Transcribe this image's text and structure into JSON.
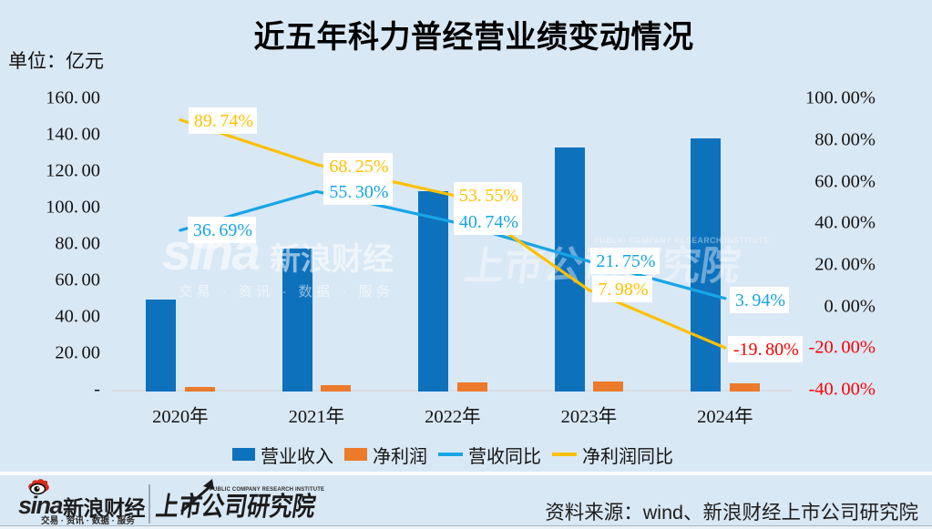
{
  "title": "近五年科力普经营业绩变动情况",
  "unit_label": "单位：亿元",
  "colors": {
    "background": "#d9e8f5",
    "revenue_bar": "#0e71bc",
    "profit_bar": "#eb7a2b",
    "revenue_yoy_line": "#16a5e6",
    "profit_yoy_line": "#ffc000",
    "negative_text": "#fe0000"
  },
  "chart_data": {
    "type": "bar",
    "title": "近五年科力普经营业绩变动情况",
    "unit": "亿元",
    "categories": [
      "2020年",
      "2021年",
      "2022年",
      "2023年",
      "2024年"
    ],
    "series": [
      {
        "name": "营业收入",
        "type": "bar",
        "axis": "left",
        "color": "#0e71bc",
        "values": [
          50.05,
          77.73,
          109.4,
          133.19,
          138.44
        ]
      },
      {
        "name": "净利润",
        "type": "bar",
        "axis": "left",
        "color": "#eb7a2b",
        "values": [
          1.7,
          2.86,
          4.39,
          4.74,
          3.8
        ]
      },
      {
        "name": "营收同比",
        "type": "line",
        "axis": "right",
        "color": "#16a5e6",
        "values": [
          36.69,
          55.3,
          40.74,
          21.75,
          3.94
        ],
        "labels": [
          "36.69%",
          "55.30%",
          "40.74%",
          "21.75%",
          "3.94%"
        ],
        "label_colors": [
          "#16a5e6",
          "#16a5e6",
          "#16a5e6",
          "#16a5e6",
          "#16a5e6"
        ]
      },
      {
        "name": "净利润同比",
        "type": "line",
        "axis": "right",
        "color": "#ffc000",
        "values": [
          89.74,
          68.25,
          53.55,
          7.98,
          -19.8
        ],
        "labels": [
          "89.74%",
          "68.25%",
          "53.55%",
          "7.98%",
          "-19.80%"
        ],
        "label_colors": [
          "#ffc000",
          "#ffc000",
          "#ffc000",
          "#ffc000",
          "#fe0000"
        ]
      }
    ],
    "left_axis": {
      "ticks": [
        "160.00",
        "140.00",
        "120.00",
        "100.00",
        "80.00",
        "60.00",
        "40.00",
        "20.00",
        "-"
      ],
      "range": [
        0,
        160
      ]
    },
    "right_axis": {
      "ticks": [
        "100.00%",
        "80.00%",
        "60.00%",
        "40.00%",
        "20.00%",
        "0.00%",
        "-20.00%",
        "-40.00%"
      ],
      "range": [
        -40,
        100
      ]
    },
    "legend_position": "bottom",
    "grid": false
  },
  "legend": [
    {
      "label": "营业收入",
      "swatch": "rect",
      "color": "#0e71bc"
    },
    {
      "label": "净利润",
      "swatch": "rect",
      "color": "#eb7a2b"
    },
    {
      "label": "营收同比",
      "swatch": "line",
      "color": "#16a5e6"
    },
    {
      "label": "净利润同比",
      "swatch": "line",
      "color": "#ffc000"
    }
  ],
  "watermarks": {
    "sina_word": "sina",
    "sina_brand": "新浪财经",
    "sina_tagline": "交易 · 资讯 · 数据 · 服务",
    "pcri_en": "PUBLIC COMPANY RESEARCH INSTITUTE",
    "pcri_cn": "上市公司研究院"
  },
  "footer": {
    "sina_word": "sina",
    "sina_brand": "新浪财经",
    "sina_tagline": "交易 · 资讯 · 数据 · 服务",
    "pcri_en": "PUBLIC COMPANY RESEARCH INSTITUTE",
    "pcri_cn": "上市公司研究院",
    "source": "资料来源：wind、新浪财经上市公司研究院"
  }
}
